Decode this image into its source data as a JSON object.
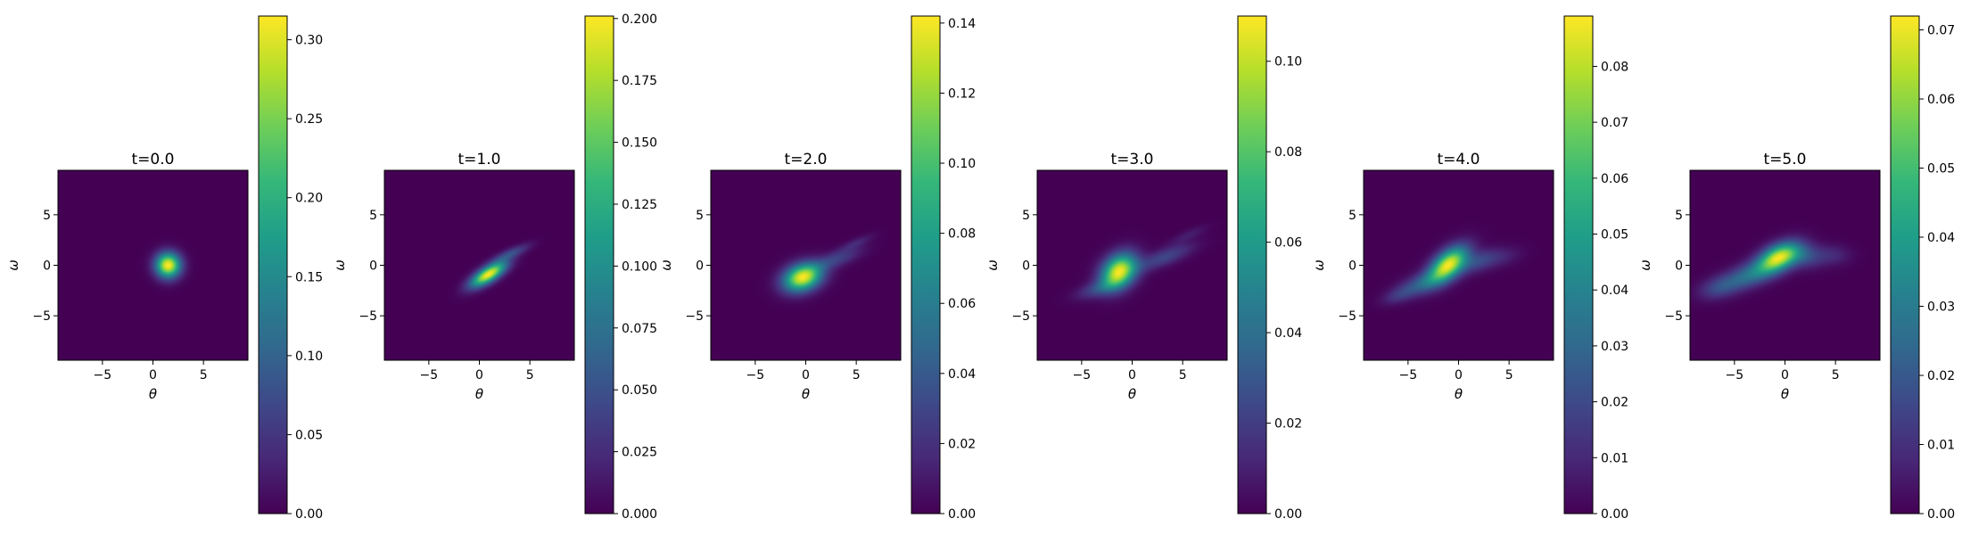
{
  "colormap": "viridis",
  "colors": {
    "viridis": [
      "#440154",
      "#482878",
      "#3e4989",
      "#31688e",
      "#26828e",
      "#1f9e89",
      "#35b779",
      "#6ece58",
      "#b5de2b",
      "#fde725"
    ],
    "frame": "#000000",
    "background": "#ffffff"
  },
  "chart_data": [
    {
      "type": "heatmap",
      "title": "t=0.0",
      "xlabel": "θ",
      "ylabel": "ω",
      "xlim": [
        -9.4,
        9.4
      ],
      "ylim": [
        -9.4,
        9.4
      ],
      "xticks": [
        -5,
        0,
        5
      ],
      "yticks": [
        5,
        0,
        -5
      ],
      "xtick_labels": [
        "−5",
        "0",
        "5"
      ],
      "ytick_labels": [
        "5",
        "0",
        "−5"
      ],
      "colorbar": {
        "vmin": 0,
        "vmax": 0.315,
        "ticks": [
          0,
          0.05,
          0.1,
          0.15,
          0.2,
          0.25,
          0.3
        ],
        "tick_labels": [
          "0.00",
          "0.05",
          "0.10",
          "0.15",
          "0.20",
          "0.25",
          "0.30"
        ]
      },
      "blobs": [
        {
          "x": 1.5,
          "y": 0.0,
          "sx": 0.85,
          "sy": 0.85,
          "rho": 0.0,
          "w": 1.0
        }
      ]
    },
    {
      "type": "heatmap",
      "title": "t=1.0",
      "xlabel": "θ",
      "ylabel": "ω",
      "xlim": [
        -9.4,
        9.4
      ],
      "ylim": [
        -9.4,
        9.4
      ],
      "xticks": [
        -5,
        0,
        5
      ],
      "yticks": [
        5,
        0,
        -5
      ],
      "xtick_labels": [
        "−5",
        "0",
        "5"
      ],
      "ytick_labels": [
        "5",
        "0",
        "−5"
      ],
      "colorbar": {
        "vmin": 0,
        "vmax": 0.201,
        "ticks": [
          0,
          0.025,
          0.05,
          0.075,
          0.1,
          0.125,
          0.15,
          0.175,
          0.2
        ],
        "tick_labels": [
          "0.000",
          "0.025",
          "0.050",
          "0.075",
          "0.100",
          "0.125",
          "0.150",
          "0.175",
          "0.200"
        ]
      },
      "blobs": [
        {
          "x": 0.9,
          "y": -0.9,
          "sx": 1.2,
          "sy": 0.85,
          "rho": 0.72,
          "w": 1.0
        },
        {
          "x": 3.2,
          "y": 1.2,
          "sx": 1.2,
          "sy": 0.6,
          "rho": 0.8,
          "w": 0.22
        }
      ]
    },
    {
      "type": "heatmap",
      "title": "t=2.0",
      "xlabel": "θ",
      "ylabel": "ω",
      "xlim": [
        -9.4,
        9.4
      ],
      "ylim": [
        -9.4,
        9.4
      ],
      "xticks": [
        -5,
        0,
        5
      ],
      "yticks": [
        5,
        0,
        -5
      ],
      "xtick_labels": [
        "−5",
        "0",
        "5"
      ],
      "ytick_labels": [
        "5",
        "0",
        "−5"
      ],
      "colorbar": {
        "vmin": 0,
        "vmax": 0.142,
        "ticks": [
          0,
          0.02,
          0.04,
          0.06,
          0.08,
          0.1,
          0.12,
          0.14
        ],
        "tick_labels": [
          "0.00",
          "0.02",
          "0.04",
          "0.06",
          "0.08",
          "0.10",
          "0.12",
          "0.14"
        ]
      },
      "blobs": [
        {
          "x": -0.3,
          "y": -1.2,
          "sx": 1.3,
          "sy": 0.95,
          "rho": 0.25,
          "w": 1.0
        },
        {
          "x": 3.0,
          "y": 0.6,
          "sx": 1.7,
          "sy": 0.8,
          "rho": 0.7,
          "w": 0.2
        },
        {
          "x": 5.0,
          "y": 2.2,
          "sx": 1.1,
          "sy": 0.55,
          "rho": 0.8,
          "w": 0.1
        }
      ]
    },
    {
      "type": "heatmap",
      "title": "t=3.0",
      "xlabel": "θ",
      "ylabel": "ω",
      "xlim": [
        -9.4,
        9.4
      ],
      "ylim": [
        -9.4,
        9.4
      ],
      "xticks": [
        -5,
        0,
        5
      ],
      "yticks": [
        5,
        0,
        -5
      ],
      "xtick_labels": [
        "−5",
        "0",
        "5"
      ],
      "ytick_labels": [
        "5",
        "0",
        "−5"
      ],
      "colorbar": {
        "vmin": 0,
        "vmax": 0.11,
        "ticks": [
          0,
          0.02,
          0.04,
          0.06,
          0.08,
          0.1
        ],
        "tick_labels": [
          "0.00",
          "0.02",
          "0.04",
          "0.06",
          "0.08",
          "0.10"
        ]
      },
      "blobs": [
        {
          "x": -1.3,
          "y": -0.6,
          "sx": 1.2,
          "sy": 1.2,
          "rho": 0.3,
          "w": 1.0
        },
        {
          "x": -3.3,
          "y": -2.3,
          "sx": 1.5,
          "sy": 0.7,
          "rho": 0.6,
          "w": 0.2
        },
        {
          "x": 3.2,
          "y": 0.8,
          "sx": 1.9,
          "sy": 0.9,
          "rho": 0.75,
          "w": 0.22
        },
        {
          "x": 5.6,
          "y": 3.0,
          "sx": 1.2,
          "sy": 0.6,
          "rho": 0.8,
          "w": 0.08
        }
      ]
    },
    {
      "type": "heatmap",
      "title": "t=4.0",
      "xlabel": "θ",
      "ylabel": "ω",
      "xlim": [
        -9.4,
        9.4
      ],
      "ylim": [
        -9.4,
        9.4
      ],
      "xticks": [
        -5,
        0,
        5
      ],
      "yticks": [
        5,
        0,
        -5
      ],
      "xtick_labels": [
        "−5",
        "0",
        "5"
      ],
      "ytick_labels": [
        "5",
        "0",
        "−5"
      ],
      "colorbar": {
        "vmin": 0,
        "vmax": 0.089,
        "ticks": [
          0,
          0.01,
          0.02,
          0.03,
          0.04,
          0.05,
          0.06,
          0.07,
          0.08
        ],
        "tick_labels": [
          "0.00",
          "0.01",
          "0.02",
          "0.03",
          "0.04",
          "0.05",
          "0.06",
          "0.07",
          "0.08"
        ]
      },
      "blobs": [
        {
          "x": -1.0,
          "y": 0.1,
          "sx": 1.3,
          "sy": 1.2,
          "rho": 0.55,
          "w": 1.0
        },
        {
          "x": -3.5,
          "y": -1.8,
          "sx": 1.7,
          "sy": 0.9,
          "rho": 0.6,
          "w": 0.3
        },
        {
          "x": -6.0,
          "y": -3.0,
          "sx": 1.1,
          "sy": 0.6,
          "rho": 0.5,
          "w": 0.12
        },
        {
          "x": 2.0,
          "y": 0.4,
          "sx": 1.4,
          "sy": 0.8,
          "rho": 0.5,
          "w": 0.22
        },
        {
          "x": 4.5,
          "y": 0.8,
          "sx": 1.3,
          "sy": 0.7,
          "rho": 0.4,
          "w": 0.08
        }
      ]
    },
    {
      "type": "heatmap",
      "title": "t=5.0",
      "xlabel": "θ",
      "ylabel": "ω",
      "xlim": [
        -9.4,
        9.4
      ],
      "ylim": [
        -9.4,
        9.4
      ],
      "xticks": [
        -5,
        0,
        5
      ],
      "yticks": [
        5,
        0,
        -5
      ],
      "xtick_labels": [
        "−5",
        "0",
        "5"
      ],
      "ytick_labels": [
        "5",
        "0",
        "−5"
      ],
      "colorbar": {
        "vmin": 0,
        "vmax": 0.072,
        "ticks": [
          0,
          0.01,
          0.02,
          0.03,
          0.04,
          0.05,
          0.06,
          0.07
        ],
        "tick_labels": [
          "0.00",
          "0.01",
          "0.02",
          "0.03",
          "0.04",
          "0.05",
          "0.06",
          "0.07"
        ]
      },
      "blobs": [
        {
          "x": -0.6,
          "y": 0.8,
          "sx": 1.4,
          "sy": 1.0,
          "rho": 0.45,
          "w": 1.0
        },
        {
          "x": -3.3,
          "y": -0.9,
          "sx": 1.9,
          "sy": 1.0,
          "rho": 0.55,
          "w": 0.4
        },
        {
          "x": -6.5,
          "y": -2.2,
          "sx": 1.4,
          "sy": 0.8,
          "rho": 0.35,
          "w": 0.22
        },
        {
          "x": 2.0,
          "y": 0.9,
          "sx": 1.3,
          "sy": 0.8,
          "rho": 0.0,
          "w": 0.25
        },
        {
          "x": 4.8,
          "y": 1.0,
          "sx": 1.2,
          "sy": 0.7,
          "rho": 0.0,
          "w": 0.12
        }
      ]
    }
  ]
}
